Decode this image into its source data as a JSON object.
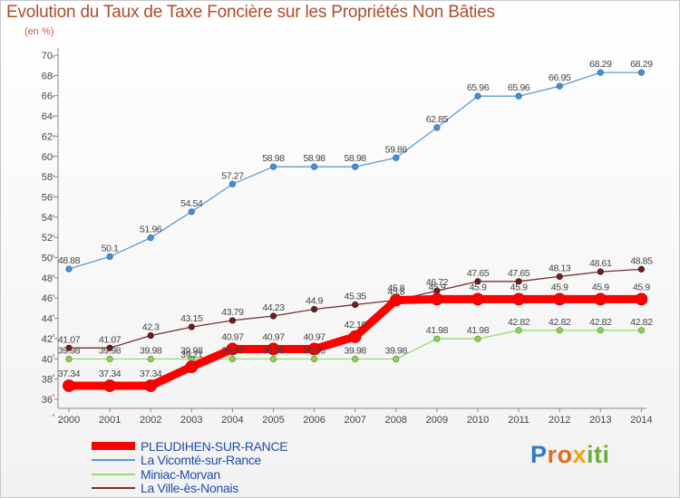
{
  "title": "Evolution du Taux de Taxe Foncière sur les Propriétés Non Bâties",
  "unit_label": "(en %)",
  "logo": {
    "p": "P",
    "ro": "ro",
    "x": "x",
    "iti": "iti"
  },
  "chart_data": {
    "type": "line",
    "title": "Evolution du Taux de Taxe Foncière sur les Propriétés Non Bâties",
    "ylabel": "(en %)",
    "xlabel": "",
    "ylim": [
      36,
      70
    ],
    "y_ticks": [
      36,
      38,
      40,
      42,
      44,
      46,
      48,
      50,
      52,
      54,
      56,
      58,
      60,
      62,
      64,
      66,
      68,
      70
    ],
    "grid": false,
    "legend_position": "bottom-left",
    "categories": [
      "2000",
      "2001",
      "2002",
      "2003",
      "2004",
      "2005",
      "2006",
      "2007",
      "2008",
      "2009",
      "2010",
      "2011",
      "2012",
      "2013",
      "2014"
    ],
    "series": [
      {
        "name": "PLEUDIHEN-SUR-RANCE",
        "color": "#ff0000",
        "values": [
          37.34,
          37.34,
          37.34,
          39.21,
          40.97,
          40.97,
          40.97,
          42.19,
          45.8,
          45.9,
          45.9,
          45.9,
          45.9,
          45.9,
          45.9
        ],
        "labels": [
          "37.34",
          "37.34",
          "37.34",
          "39.21",
          "40.97",
          "40.97",
          "40.97",
          "42.19",
          "45.8",
          "45.9",
          "45.9",
          "45.9",
          "45.9",
          "45.9",
          "45.9"
        ]
      },
      {
        "name": "La Vicomté-sur-Rance",
        "color": "#5b9bd5",
        "values": [
          48.88,
          50.1,
          51.96,
          54.54,
          57.27,
          58.98,
          58.98,
          58.98,
          59.86,
          62.85,
          65.96,
          65.96,
          66.95,
          68.29,
          68.29
        ],
        "labels": [
          "48.88",
          "50.1",
          "51.96",
          "54.54",
          "57.27",
          "58.98",
          "58.98",
          "58.98",
          "59.86",
          "62.85",
          "65.96",
          "65.96",
          "66.95",
          "68.29",
          "68.29"
        ]
      },
      {
        "name": "Miniac-Morvan",
        "color": "#9ad870",
        "values": [
          39.98,
          39.98,
          39.98,
          39.98,
          39.98,
          39.98,
          39.98,
          39.98,
          39.98,
          41.98,
          41.98,
          42.82,
          42.82,
          42.82,
          42.82
        ],
        "labels": [
          "39.98",
          "39.98",
          "39.98",
          "39.98",
          "39.98",
          "39.98",
          "39.98",
          "39.98",
          "39.98",
          "41.98",
          "41.98",
          "42.82",
          "42.82",
          "42.82",
          "42.82"
        ]
      },
      {
        "name": "La Ville-ès-Nonais",
        "color": "#7a2e2e",
        "values": [
          41.07,
          41.07,
          42.3,
          43.15,
          43.79,
          44.23,
          44.9,
          45.35,
          45.8,
          46.72,
          47.65,
          47.65,
          48.13,
          48.61,
          48.85
        ],
        "labels": [
          "41.07",
          "41.07",
          "42.3",
          "43.15",
          "43.79",
          "44.23",
          "44.9",
          "45.35",
          "45.8",
          "46.72",
          "47.65",
          "47.65",
          "48.13",
          "48.61",
          "48.85"
        ]
      }
    ]
  }
}
